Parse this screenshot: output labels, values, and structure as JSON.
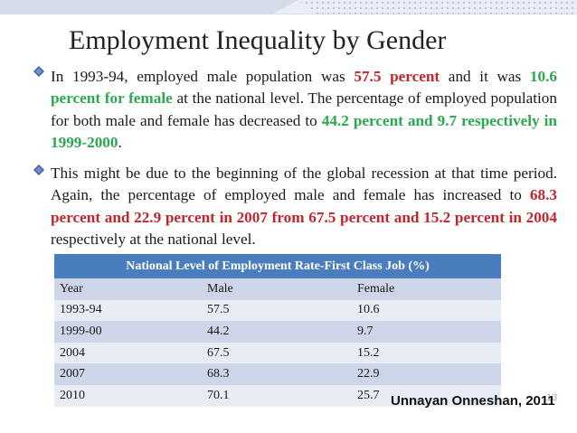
{
  "title": "Employment Inequality by Gender",
  "para1": {
    "t1": "In 1993-94, employed male population was ",
    "r1": "57.5 percent",
    "t2": " and it was ",
    "g1": "10.6 percent for female",
    "t3": " at the national level. The percentage of employed population for both male and female has decreased to ",
    "g2": "44.2 percent and 9.7 respectively in 1999-2000",
    "t4": "."
  },
  "para2": {
    "t1": "This might be due to the beginning of the global recession at that time period. Again, the percentage of employed male and female has increased to ",
    "r1": "68.3 percent and 22.9 percent in 2007 from 67.5 percent and 15.2 percent in 2004",
    "t2": " respectively at the national level."
  },
  "table": {
    "caption": "National Level of Employment Rate-First Class Job  (%)",
    "headers": [
      "Year",
      "Male",
      "Female"
    ],
    "rows": [
      [
        "1993-94",
        "57.5",
        "10.6"
      ],
      [
        "1999-00",
        "44.2",
        "9.7"
      ],
      [
        "2004",
        "67.5",
        "15.2"
      ],
      [
        "2007",
        "68.3",
        "22.9"
      ],
      [
        "2010",
        "70.1",
        "25.7"
      ]
    ]
  },
  "source": "Unnayan Onneshan, 2011",
  "page_number": "13",
  "colors": {
    "highlight_red": "#c0262d",
    "highlight_green": "#2aa84f",
    "table_header": "#4a7dbd",
    "bullet": "#3f5ea6"
  }
}
